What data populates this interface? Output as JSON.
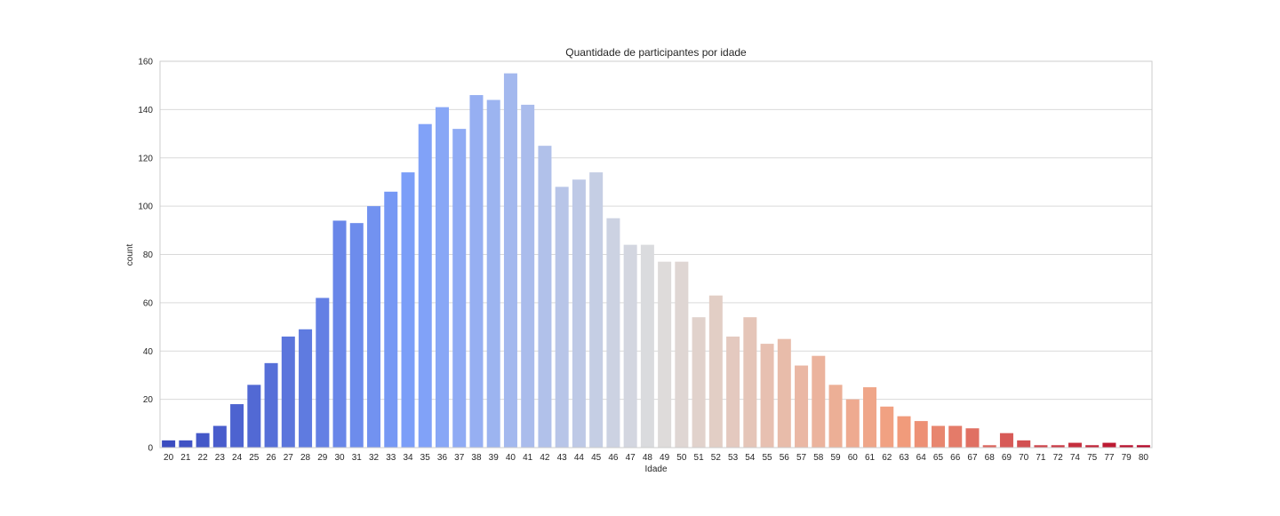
{
  "chart_data": {
    "type": "bar",
    "title": "Quantidade de participantes por idade",
    "xlabel": "Idade",
    "ylabel": "count",
    "ylim": [
      0,
      160
    ],
    "yticks": [
      0,
      20,
      40,
      60,
      80,
      100,
      120,
      140,
      160
    ],
    "grid": "horizontal",
    "palette": "coolwarm",
    "colors": {
      "palette_start": "#3b4cc0",
      "palette_mid": "#dddddd",
      "palette_end": "#b40426"
    },
    "categories": [
      "20",
      "21",
      "22",
      "23",
      "24",
      "25",
      "26",
      "27",
      "28",
      "29",
      "30",
      "31",
      "32",
      "33",
      "34",
      "35",
      "36",
      "37",
      "38",
      "39",
      "40",
      "41",
      "42",
      "43",
      "44",
      "45",
      "46",
      "47",
      "48",
      "49",
      "50",
      "51",
      "52",
      "53",
      "54",
      "55",
      "56",
      "57",
      "58",
      "59",
      "60",
      "61",
      "62",
      "63",
      "64",
      "65",
      "66",
      "67",
      "68",
      "69",
      "70",
      "71",
      "72",
      "74",
      "75",
      "77",
      "79",
      "80"
    ],
    "values": [
      3,
      3,
      6,
      9,
      18,
      26,
      35,
      46,
      49,
      62,
      94,
      93,
      100,
      106,
      114,
      134,
      141,
      132,
      146,
      144,
      155,
      142,
      125,
      108,
      111,
      114,
      95,
      84,
      84,
      77,
      77,
      54,
      63,
      46,
      54,
      43,
      45,
      34,
      38,
      26,
      20,
      25,
      17,
      13,
      11,
      9,
      9,
      8,
      1,
      6,
      3,
      1,
      1,
      2,
      1,
      2,
      1,
      1
    ]
  }
}
